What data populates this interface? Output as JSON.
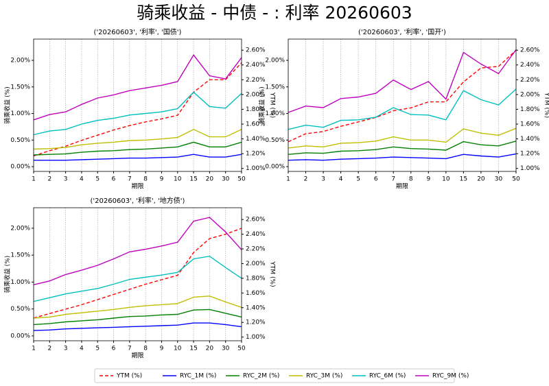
{
  "title": "骑乘收益 - 中债 - : 利率 20260603",
  "chart_data": [
    {
      "type": "line",
      "title": "('20260603', '利率', '国债')",
      "xlabel": "期限",
      "ylabel": "骑乘收益 (%)",
      "y2label": "YTM (%)",
      "grid": "x",
      "categories": [
        "1",
        "2",
        "3",
        "4",
        "5",
        "6",
        "7",
        "8",
        "9",
        "10",
        "15",
        "20",
        "30",
        "50"
      ],
      "ylim": [
        -0.09,
        2.4
      ],
      "yticks": [
        {
          "value": 0,
          "label": "0.00%"
        },
        {
          "value": 0.5,
          "label": "0.50%"
        },
        {
          "value": 1,
          "label": "1.00%"
        },
        {
          "value": 1.5,
          "label": "1.50%"
        },
        {
          "value": 2,
          "label": "2.00%"
        }
      ],
      "y2lim": [
        0.96,
        2.75
      ],
      "y2ticks": [
        {
          "value": 1,
          "label": "1.00%"
        },
        {
          "value": 1.2,
          "label": "1.20%"
        },
        {
          "value": 1.4,
          "label": "1.40%"
        },
        {
          "value": 1.6,
          "label": "1.60%"
        },
        {
          "value": 1.8,
          "label": "1.80%"
        },
        {
          "value": 2,
          "label": "2.00%"
        },
        {
          "value": 2.2,
          "label": "2.20%"
        },
        {
          "value": 2.4,
          "label": "2.40%"
        },
        {
          "value": 2.6,
          "label": "2.60%"
        }
      ],
      "series": [
        {
          "name": "YTM (%)",
          "color": "#ff0000",
          "linestyle": "dashed",
          "axis": "y2",
          "values": [
            1.17,
            1.24,
            1.3,
            1.38,
            1.45,
            1.52,
            1.58,
            1.63,
            1.67,
            1.72,
            2.03,
            2.2,
            2.2,
            2.43
          ]
        },
        {
          "name": "RYC_1M (%)",
          "color": "#0000ff",
          "values": [
            0.12,
            0.12,
            0.12,
            0.13,
            0.14,
            0.15,
            0.16,
            0.16,
            0.17,
            0.18,
            0.23,
            0.18,
            0.18,
            0.23
          ]
        },
        {
          "name": "RYC_2M (%)",
          "color": "#008000",
          "values": [
            0.22,
            0.23,
            0.24,
            0.27,
            0.29,
            0.3,
            0.32,
            0.33,
            0.35,
            0.37,
            0.46,
            0.37,
            0.37,
            0.46
          ]
        },
        {
          "name": "RYC_3M (%)",
          "color": "#bfbf00",
          "values": [
            0.33,
            0.34,
            0.36,
            0.41,
            0.44,
            0.46,
            0.49,
            0.5,
            0.52,
            0.55,
            0.7,
            0.56,
            0.56,
            0.7
          ]
        },
        {
          "name": "RYC_6M (%)",
          "color": "#00bfbf",
          "values": [
            0.6,
            0.67,
            0.7,
            0.8,
            0.87,
            0.91,
            0.97,
            1.0,
            1.03,
            1.09,
            1.4,
            1.13,
            1.1,
            1.38
          ]
        },
        {
          "name": "RYC_9M (%)",
          "color": "#bf00bf",
          "values": [
            0.88,
            0.98,
            1.03,
            1.17,
            1.29,
            1.35,
            1.43,
            1.48,
            1.53,
            1.6,
            2.1,
            1.71,
            1.65,
            2.05
          ]
        }
      ]
    },
    {
      "type": "line",
      "title": "('20260603', '利率', '国开')",
      "xlabel": "期限",
      "ylabel": "骑乘收益 (%)",
      "y2label": "YTM (%)",
      "grid": "x",
      "categories": [
        "1",
        "2",
        "3",
        "4",
        "5",
        "6",
        "7",
        "8",
        "9",
        "10",
        "15",
        "20",
        "30",
        "50"
      ],
      "ylim": [
        -0.09,
        2.4
      ],
      "yticks": [
        {
          "value": 0,
          "label": "0.00%"
        },
        {
          "value": 0.5,
          "label": "0.50%"
        },
        {
          "value": 1,
          "label": "1.00%"
        },
        {
          "value": 1.5,
          "label": "1.50%"
        },
        {
          "value": 2,
          "label": "2.00%"
        }
      ],
      "y2lim": [
        0.96,
        2.75
      ],
      "y2ticks": [
        {
          "value": 1,
          "label": "1.00%"
        },
        {
          "value": 1.2,
          "label": "1.20%"
        },
        {
          "value": 1.4,
          "label": "1.40%"
        },
        {
          "value": 1.6,
          "label": "1.60%"
        },
        {
          "value": 1.8,
          "label": "1.80%"
        },
        {
          "value": 2,
          "label": "2.00%"
        },
        {
          "value": 2.2,
          "label": "2.20%"
        },
        {
          "value": 2.4,
          "label": "2.40%"
        },
        {
          "value": 2.6,
          "label": "2.60%"
        }
      ],
      "series": [
        {
          "name": "YTM (%)",
          "color": "#ff0000",
          "linestyle": "dashed",
          "axis": "y2",
          "values": [
            1.36,
            1.47,
            1.5,
            1.57,
            1.63,
            1.69,
            1.78,
            1.82,
            1.9,
            1.9,
            2.17,
            2.36,
            2.38,
            2.6
          ]
        },
        {
          "name": "RYC_1M (%)",
          "color": "#0000ff",
          "values": [
            0.12,
            0.13,
            0.12,
            0.14,
            0.15,
            0.16,
            0.18,
            0.17,
            0.16,
            0.15,
            0.23,
            0.2,
            0.18,
            0.24
          ]
        },
        {
          "name": "RYC_2M (%)",
          "color": "#008000",
          "values": [
            0.23,
            0.26,
            0.25,
            0.29,
            0.3,
            0.32,
            0.37,
            0.34,
            0.33,
            0.31,
            0.47,
            0.41,
            0.39,
            0.48
          ]
        },
        {
          "name": "RYC_3M (%)",
          "color": "#bfbf00",
          "values": [
            0.35,
            0.39,
            0.37,
            0.44,
            0.45,
            0.48,
            0.56,
            0.5,
            0.5,
            0.46,
            0.71,
            0.63,
            0.59,
            0.72
          ]
        },
        {
          "name": "RYC_6M (%)",
          "color": "#00bfbf",
          "values": [
            0.7,
            0.78,
            0.74,
            0.87,
            0.88,
            0.93,
            1.11,
            0.98,
            0.97,
            0.88,
            1.43,
            1.26,
            1.16,
            1.46
          ]
        },
        {
          "name": "RYC_9M (%)",
          "color": "#bf00bf",
          "values": [
            1.02,
            1.14,
            1.11,
            1.28,
            1.31,
            1.38,
            1.63,
            1.45,
            1.6,
            1.27,
            2.15,
            1.93,
            1.75,
            2.2
          ]
        }
      ]
    },
    {
      "type": "line",
      "title": "('20260603', '利率', '地方债')",
      "xlabel": "期限",
      "ylabel": "骑乘收益 (%)",
      "y2label": "YTM (%)",
      "grid": "x",
      "categories": [
        "1",
        "2",
        "3",
        "4",
        "5",
        "6",
        "7",
        "8",
        "9",
        "10",
        "15",
        "20",
        "30",
        "50"
      ],
      "ylim": [
        -0.09,
        2.38
      ],
      "yticks": [
        {
          "value": 0,
          "label": "0.00%"
        },
        {
          "value": 0.5,
          "label": "0.50%"
        },
        {
          "value": 1,
          "label": "1.00%"
        },
        {
          "value": 1.5,
          "label": "1.50%"
        },
        {
          "value": 2,
          "label": "2.00%"
        }
      ],
      "y2lim": [
        0.95,
        2.76
      ],
      "y2ticks": [
        {
          "value": 1,
          "label": "1.00%"
        },
        {
          "value": 1.2,
          "label": "1.20%"
        },
        {
          "value": 1.4,
          "label": "1.40%"
        },
        {
          "value": 1.6,
          "label": "1.60%"
        },
        {
          "value": 1.8,
          "label": "1.80%"
        },
        {
          "value": 2,
          "label": "2.00%"
        },
        {
          "value": 2.2,
          "label": "2.20%"
        },
        {
          "value": 2.4,
          "label": "2.40%"
        },
        {
          "value": 2.6,
          "label": "2.60%"
        }
      ],
      "series": [
        {
          "name": "YTM (%)",
          "color": "#ff0000",
          "linestyle": "dashed",
          "axis": "y2",
          "values": [
            1.26,
            1.32,
            1.38,
            1.44,
            1.51,
            1.58,
            1.65,
            1.72,
            1.78,
            1.84,
            2.15,
            2.34,
            2.4,
            2.48
          ]
        },
        {
          "name": "RYC_1M (%)",
          "color": "#0000ff",
          "values": [
            0.1,
            0.11,
            0.13,
            0.14,
            0.15,
            0.16,
            0.17,
            0.18,
            0.19,
            0.2,
            0.24,
            0.24,
            0.21,
            0.17
          ]
        },
        {
          "name": "RYC_2M (%)",
          "color": "#008000",
          "values": [
            0.21,
            0.23,
            0.26,
            0.28,
            0.3,
            0.33,
            0.36,
            0.37,
            0.39,
            0.4,
            0.48,
            0.49,
            0.42,
            0.35
          ]
        },
        {
          "name": "RYC_3M (%)",
          "color": "#bfbf00",
          "values": [
            0.33,
            0.35,
            0.4,
            0.43,
            0.46,
            0.49,
            0.53,
            0.56,
            0.58,
            0.6,
            0.72,
            0.74,
            0.63,
            0.53
          ]
        },
        {
          "name": "RYC_6M (%)",
          "color": "#00bfbf",
          "values": [
            0.64,
            0.71,
            0.78,
            0.83,
            0.88,
            0.96,
            1.05,
            1.09,
            1.13,
            1.18,
            1.43,
            1.48,
            1.27,
            1.07
          ]
        },
        {
          "name": "RYC_9M (%)",
          "color": "#bf00bf",
          "values": [
            0.95,
            1.02,
            1.14,
            1.22,
            1.31,
            1.43,
            1.56,
            1.61,
            1.67,
            1.74,
            2.13,
            2.2,
            1.93,
            1.6
          ]
        }
      ]
    }
  ]
}
